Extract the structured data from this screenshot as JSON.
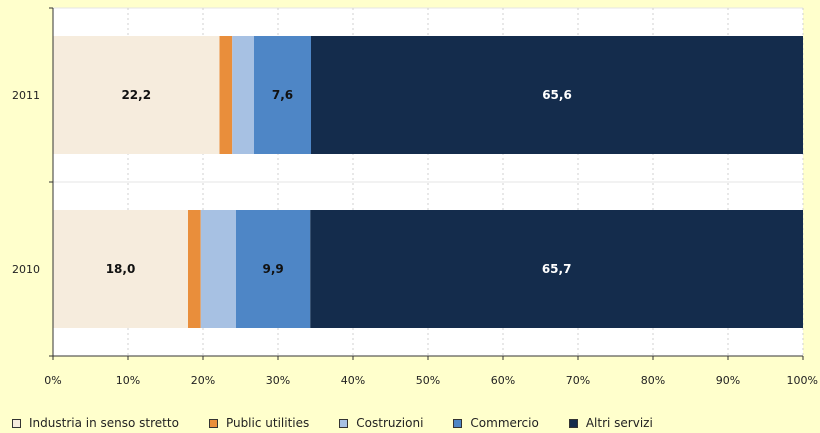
{
  "chart_data": {
    "type": "bar",
    "orientation": "horizontal",
    "stacked": true,
    "categories": [
      "2011",
      "2010"
    ],
    "series": [
      {
        "name": "Industria in senso stretto",
        "values": [
          22.2,
          18.0
        ],
        "color": "#f6ecdd",
        "labels": [
          "22,2",
          "18,0"
        ],
        "label_color": "#111111"
      },
      {
        "name": "Public utilities",
        "values": [
          1.7,
          1.7
        ],
        "color": "#e98e3b",
        "labels": [
          "",
          ""
        ],
        "label_color": "#111111"
      },
      {
        "name": "Costruzioni",
        "values": [
          2.9,
          4.7
        ],
        "color": "#a7c1e3",
        "labels": [
          "",
          ""
        ],
        "label_color": "#111111"
      },
      {
        "name": "Commercio",
        "values": [
          7.6,
          9.9
        ],
        "color": "#4e86c6",
        "labels": [
          "7,6",
          "9,9"
        ],
        "label_color": "#111111"
      },
      {
        "name": "Altri servizi",
        "values": [
          65.6,
          65.7
        ],
        "color": "#142c4c",
        "labels": [
          "65,6",
          "65,7"
        ],
        "label_color": "#ffffff"
      }
    ],
    "xlim": [
      0,
      100
    ],
    "x_ticks": [
      "0%",
      "10%",
      "20%",
      "30%",
      "40%",
      "50%",
      "60%",
      "70%",
      "80%",
      "90%",
      "100%"
    ],
    "grid": true,
    "legend": "bottom"
  }
}
